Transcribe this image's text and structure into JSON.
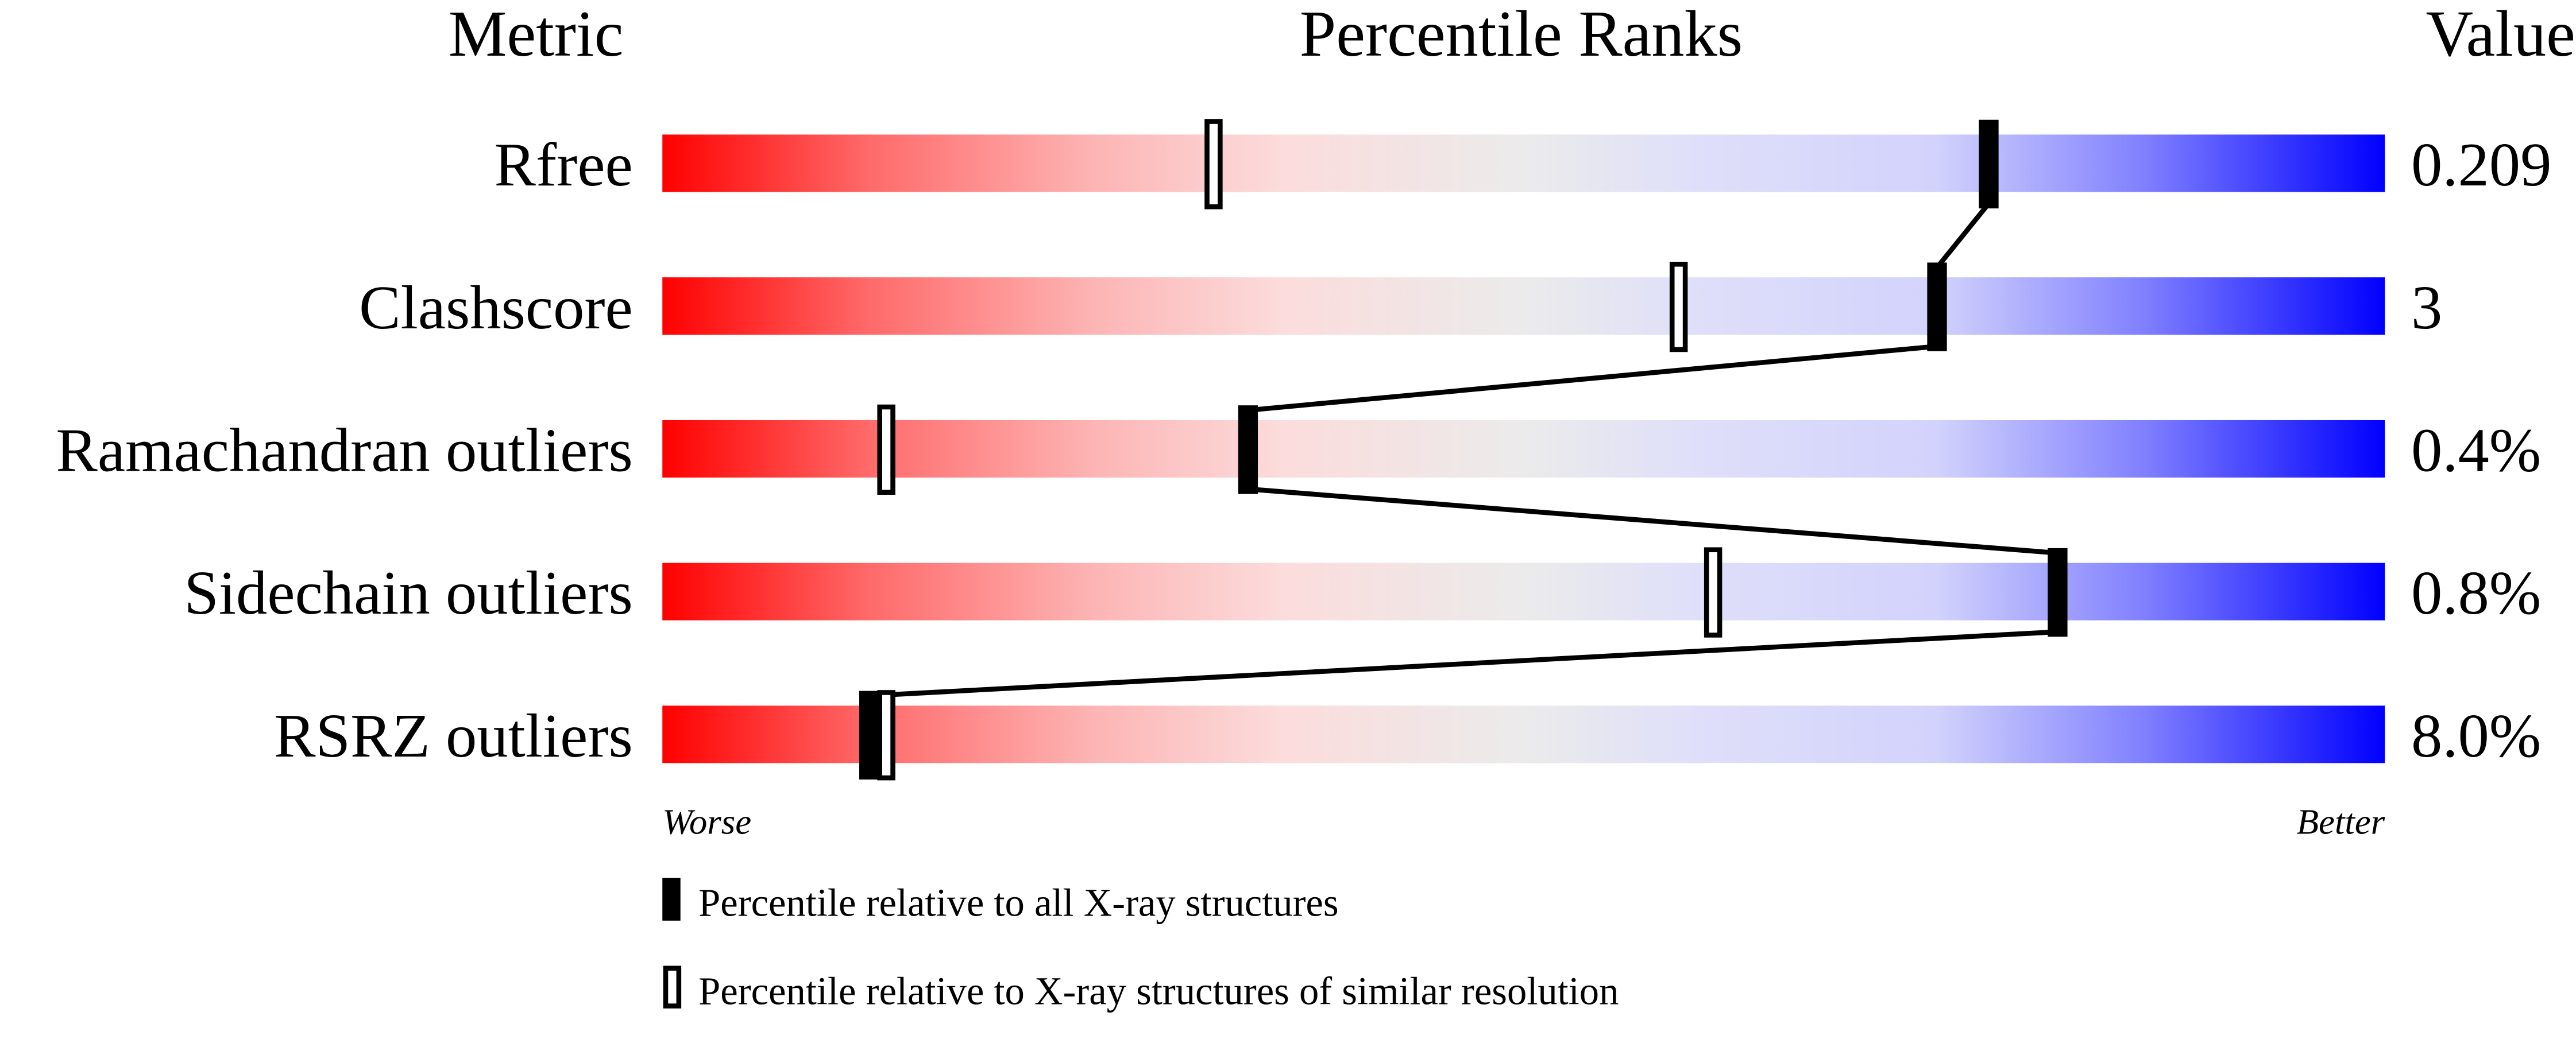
{
  "chart_data": {
    "type": "percentile-slider",
    "headers": {
      "metric": "Metric",
      "ranks": "Percentile Ranks",
      "value": "Value"
    },
    "xlim": [
      0,
      100
    ],
    "metrics": [
      {
        "name": "Rfree",
        "value": "0.209",
        "percentile_all": 77,
        "percentile_similar": 32
      },
      {
        "name": "Clashscore",
        "value": "3",
        "percentile_all": 74,
        "percentile_similar": 59
      },
      {
        "name": "Ramachandran outliers",
        "value": "0.4%",
        "percentile_all": 34,
        "percentile_similar": 13
      },
      {
        "name": "Sidechain outliers",
        "value": "0.8%",
        "percentile_all": 81,
        "percentile_similar": 61
      },
      {
        "name": "RSRZ outliers",
        "value": "8.0%",
        "percentile_all": 12,
        "percentile_similar": 13
      }
    ],
    "axis_labels": {
      "left": "Worse",
      "right": "Better"
    },
    "legend": [
      {
        "marker": "filled",
        "label": "Percentile relative to all X-ray structures"
      },
      {
        "marker": "open",
        "label": "Percentile relative to X-ray structures of similar resolution"
      }
    ],
    "colors": {
      "worse": "#ff0000",
      "middle": "#ebebeb",
      "better": "#0000ff"
    }
  }
}
